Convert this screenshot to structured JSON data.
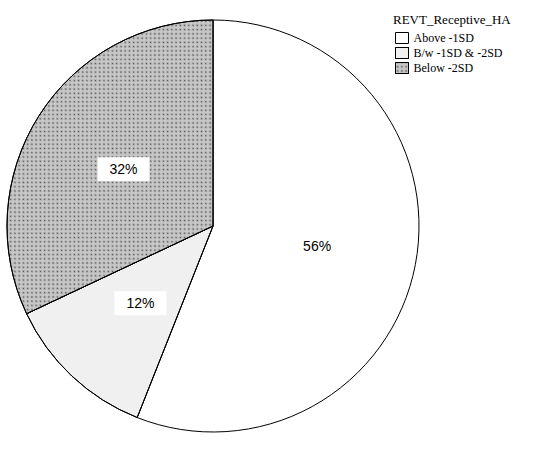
{
  "chart_data": {
    "type": "pie",
    "legend_title": "REVT_Receptive_HA",
    "categories": [
      "Above -1SD",
      "B/w -1SD & -2SD",
      "Below -2SD"
    ],
    "values": [
      56,
      12,
      32
    ],
    "value_labels": [
      "56%",
      "12%",
      "32%"
    ],
    "colors": [
      "#ffffff",
      "#f0f0f0",
      "#c8c8c8"
    ],
    "data_labels": true,
    "legend": "top-right"
  }
}
